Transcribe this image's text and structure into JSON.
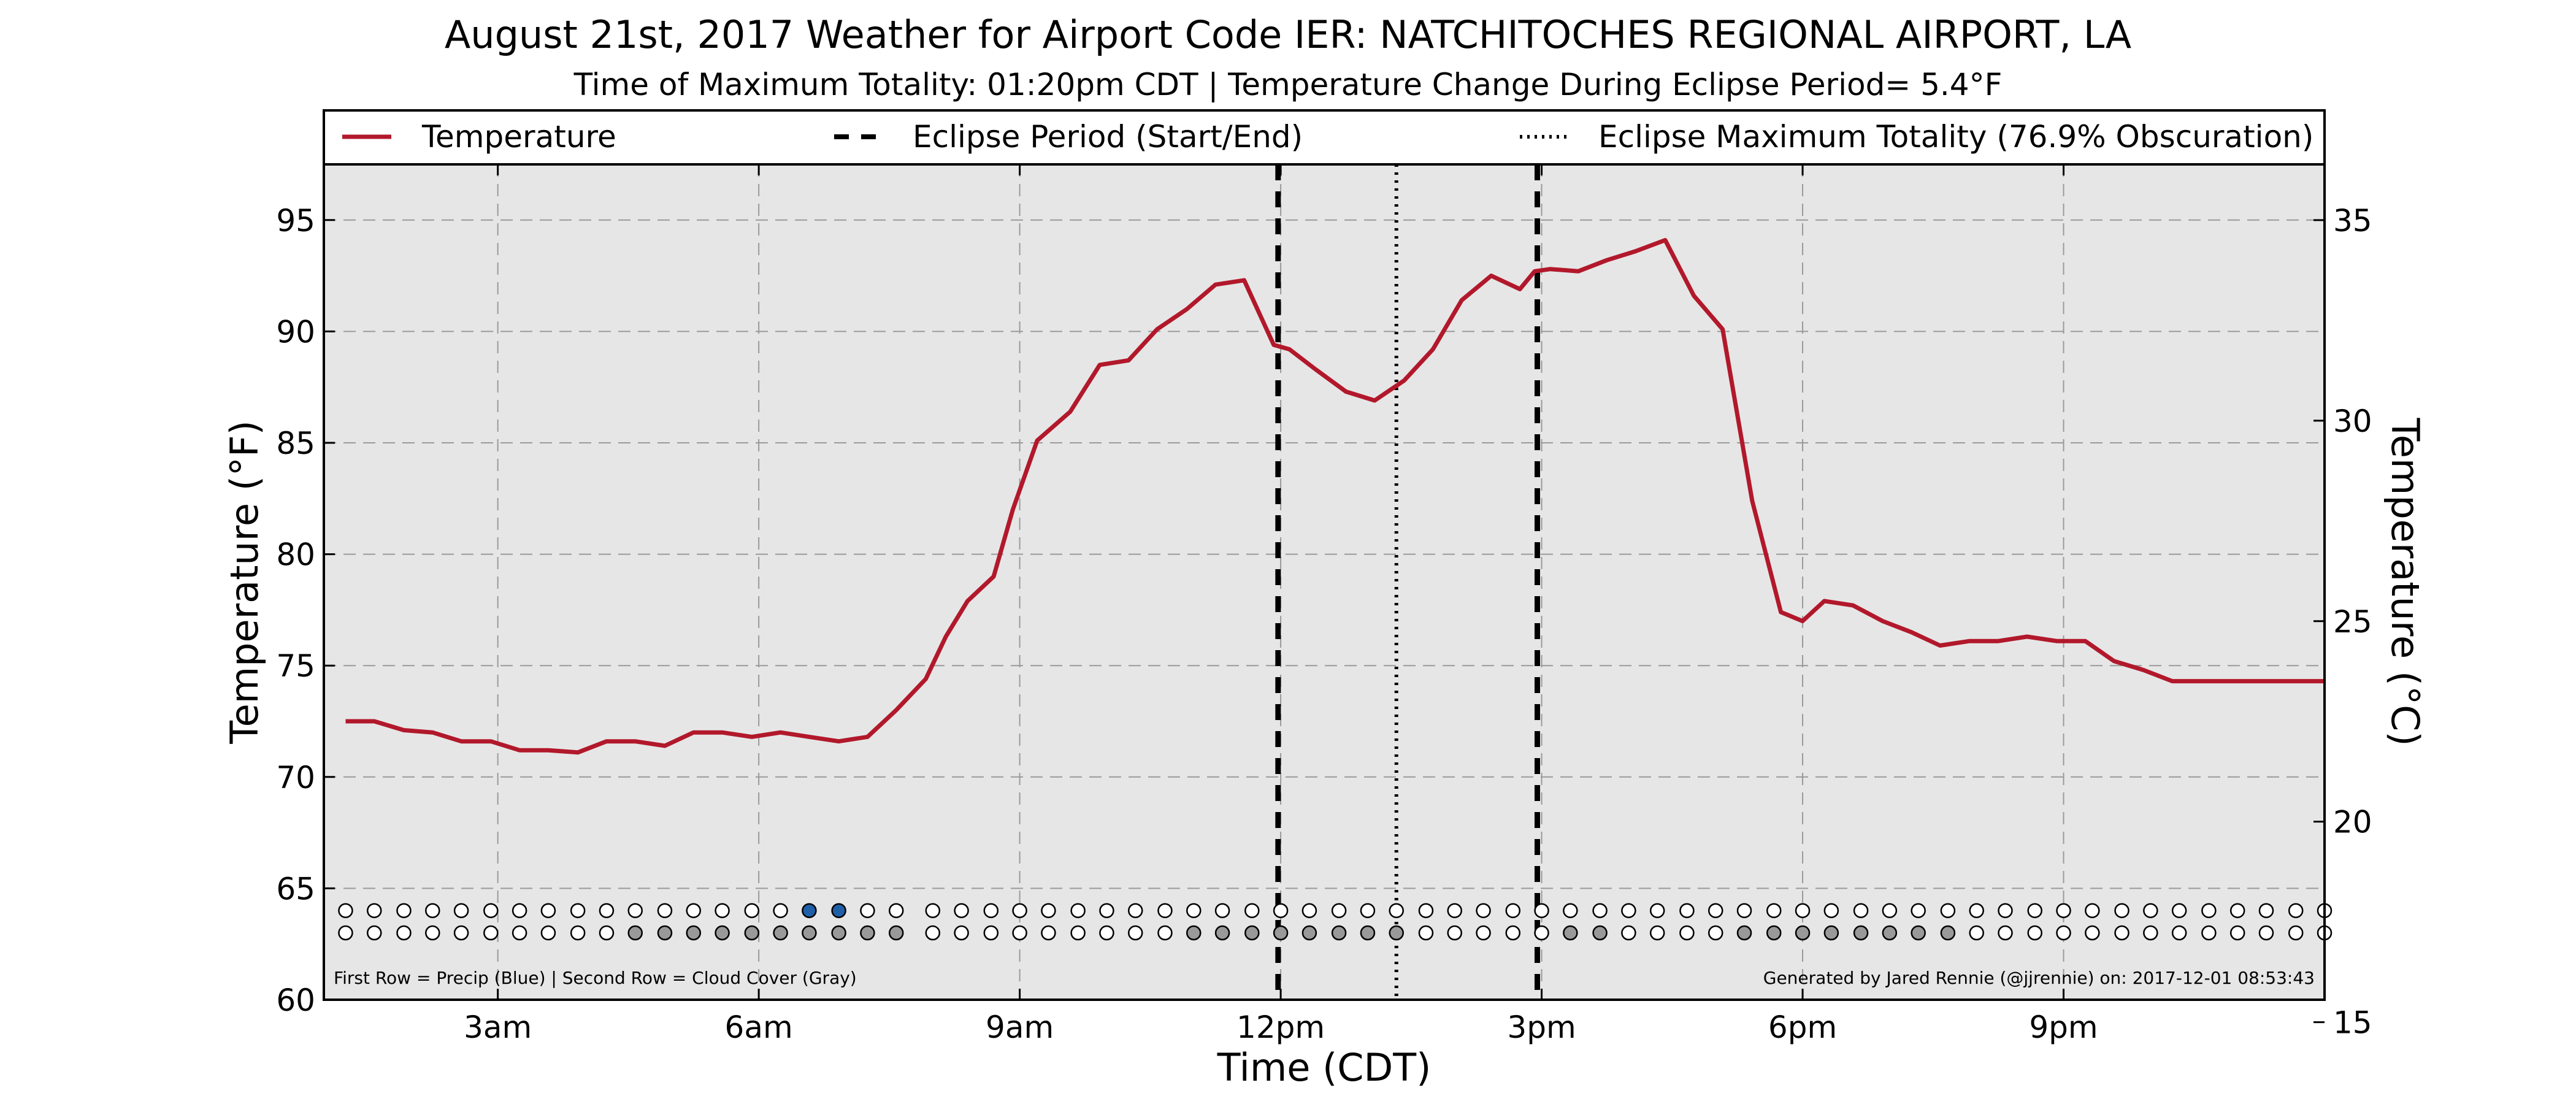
{
  "title": "August 21st, 2017 Weather for Airport Code IER: NATCHITOCHES REGIONAL AIRPORT, LA",
  "subtitle": "Time of Maximum Totality: 01:20pm CDT | Temperature Change During Eclipse Period= 5.4°F",
  "footer_left": "First Row = Precip (Blue) | Second Row = Cloud Cover (Gray)",
  "footer_right": "Generated by Jared Rennie (@jjrennie) on: 2017-12-01 08:53:43",
  "legend": {
    "temperature": "Temperature",
    "eclipse_period": "Eclipse Period (Start/End)",
    "eclipse_max": "Eclipse Maximum Totality (76.9% Obscuration)"
  },
  "colors": {
    "temperature": "#b2182b",
    "plot_background": "#e6e6e6",
    "precip": "#1f5fa8",
    "cloud": "#999999",
    "empty_marker": "#ffffff"
  },
  "chart_data": {
    "type": "line",
    "xlabel": "Time (CDT)",
    "ylabel": "Temperature (°F)",
    "ylabel_right": "Temperature (°C)",
    "xlim": [
      1.0,
      24.0
    ],
    "ylim": [
      60,
      97.5
    ],
    "ylim_right": [
      15.56,
      36.39
    ],
    "x_tick_hours": [
      3,
      6,
      9,
      12,
      15,
      18,
      21
    ],
    "x_tick_labels": [
      "3am",
      "6am",
      "9am",
      "12pm",
      "3pm",
      "6pm",
      "9pm"
    ],
    "y_ticks": [
      60,
      65,
      70,
      75,
      80,
      85,
      90,
      95
    ],
    "y_ticks_right": [
      15,
      20,
      25,
      30,
      35
    ],
    "grid": true,
    "legend_position": "top",
    "series": [
      {
        "name": "Temperature",
        "x": [
          1.25,
          1.58,
          1.92,
          2.25,
          2.58,
          2.92,
          3.25,
          3.58,
          3.92,
          4.25,
          4.58,
          4.92,
          5.25,
          5.58,
          5.92,
          6.25,
          6.58,
          6.92,
          7.25,
          7.58,
          7.92,
          8.15,
          8.4,
          8.7,
          8.92,
          9.2,
          9.58,
          9.92,
          10.25,
          10.58,
          10.92,
          11.25,
          11.58,
          11.92,
          12.1,
          12.4,
          12.75,
          13.08,
          13.42,
          13.75,
          14.08,
          14.42,
          14.75,
          14.92,
          15.1,
          15.42,
          15.75,
          16.08,
          16.42,
          16.75,
          17.08,
          17.42,
          17.75,
          18.0,
          18.25,
          18.58,
          18.92,
          19.25,
          19.58,
          19.92,
          20.25,
          20.58,
          20.92,
          21.25,
          21.58,
          21.92,
          22.25,
          22.58,
          22.92,
          23.25,
          23.58,
          24.0
        ],
        "y": [
          72.5,
          72.5,
          72.1,
          72.0,
          71.6,
          71.6,
          71.2,
          71.2,
          71.1,
          71.6,
          71.6,
          71.4,
          72.0,
          72.0,
          71.8,
          72.0,
          71.8,
          71.6,
          71.8,
          73.0,
          74.4,
          76.3,
          77.9,
          79.0,
          82.0,
          85.1,
          86.4,
          88.5,
          88.7,
          90.1,
          91.0,
          92.1,
          92.3,
          89.4,
          89.2,
          88.3,
          87.3,
          86.9,
          87.8,
          89.2,
          91.4,
          92.5,
          91.9,
          92.7,
          92.8,
          92.7,
          93.2,
          93.6,
          94.1,
          91.6,
          90.1,
          82.4,
          77.4,
          77.0,
          77.9,
          77.7,
          77.0,
          76.5,
          75.9,
          76.1,
          76.1,
          76.3,
          76.1,
          76.1,
          75.2,
          74.8,
          74.3,
          74.3,
          74.3,
          74.3,
          74.3,
          74.3
        ]
      }
    ],
    "eclipse_start_hour": 11.97,
    "eclipse_end_hour": 14.95,
    "eclipse_max_hour": 13.33,
    "marker_rows": {
      "x": [
        1.25,
        1.58,
        1.92,
        2.25,
        2.58,
        2.92,
        3.25,
        3.58,
        3.92,
        4.25,
        4.58,
        4.92,
        5.25,
        5.58,
        5.92,
        6.25,
        6.58,
        6.92,
        7.25,
        7.58,
        8.0,
        8.33,
        8.67,
        9.0,
        9.33,
        9.67,
        10.0,
        10.33,
        10.67,
        11.0,
        11.33,
        11.67,
        12.0,
        12.33,
        12.67,
        13.0,
        13.33,
        13.67,
        14.0,
        14.33,
        14.67,
        15.0,
        15.33,
        15.67,
        16.0,
        16.33,
        16.67,
        17.0,
        17.33,
        17.67,
        18.0,
        18.33,
        18.67,
        19.0,
        19.33,
        19.67,
        20.0,
        20.33,
        20.67,
        21.0,
        21.33,
        21.67,
        22.0,
        22.33,
        22.67,
        23.0,
        23.33,
        23.67,
        24.0
      ],
      "precip": [
        0,
        0,
        0,
        0,
        0,
        0,
        0,
        0,
        0,
        0,
        0,
        0,
        0,
        0,
        0,
        0,
        1,
        1,
        0,
        0,
        0,
        0,
        0,
        0,
        0,
        0,
        0,
        0,
        0,
        0,
        0,
        0,
        0,
        0,
        0,
        0,
        0,
        0,
        0,
        0,
        0,
        0,
        0,
        0,
        0,
        0,
        0,
        0,
        0,
        0,
        0,
        0,
        0,
        0,
        0,
        0,
        0,
        0,
        0,
        0,
        0,
        0,
        0,
        0,
        0,
        0,
        0,
        0,
        0
      ],
      "cloud": [
        0,
        0,
        0,
        0,
        0,
        0,
        0,
        0,
        0,
        0,
        1,
        1,
        1,
        1,
        1,
        1,
        1,
        1,
        1,
        1,
        0,
        0,
        0,
        0,
        0,
        0,
        0,
        0,
        0,
        1,
        1,
        1,
        1,
        1,
        1,
        1,
        1,
        0,
        0,
        0,
        0,
        0,
        1,
        1,
        0,
        0,
        0,
        0,
        1,
        1,
        1,
        1,
        1,
        1,
        1,
        1,
        0,
        0,
        0,
        0,
        0,
        0,
        0,
        0,
        0,
        0,
        0,
        0,
        0
      ],
      "precip_row_value": 64.0,
      "cloud_row_value": 63.0
    }
  }
}
